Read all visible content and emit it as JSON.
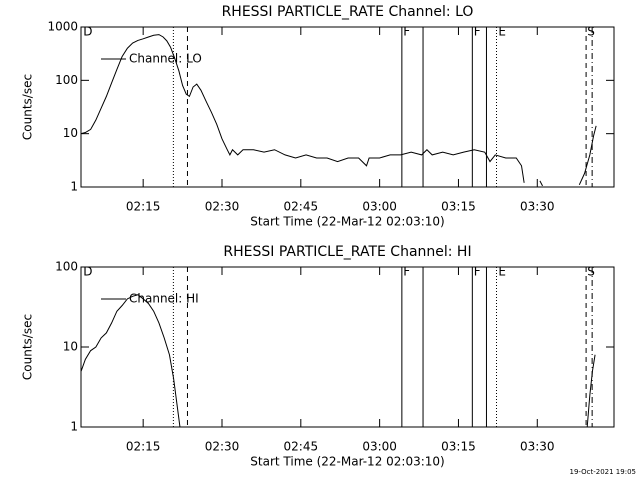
{
  "charts": [
    {
      "type": "line",
      "title": "RHESSI PARTICLE_RATE Channel: LO",
      "xlabel": "Start Time (22-Mar-12 02:03:10)",
      "ylabel": "Counts/sec",
      "x": [
        123.2,
        124,
        125,
        126,
        127,
        128,
        129,
        130,
        131,
        132,
        133,
        134,
        135,
        136,
        137,
        138,
        138.8,
        139.5,
        140.2,
        141,
        141.8,
        142.5,
        143.2,
        143.8,
        144.5,
        145.2,
        146,
        147,
        148,
        149,
        150,
        151,
        151.5,
        152,
        153,
        154,
        156,
        158,
        160,
        162,
        164,
        166,
        168,
        170,
        172,
        174,
        176,
        177.5,
        178,
        180,
        182,
        184,
        186,
        188,
        189,
        190,
        192,
        194,
        196,
        198,
        200,
        201,
        202,
        204,
        206,
        207,
        207.5,
        208,
        210.5,
        211,
        211.5,
        218,
        219,
        220,
        220.7,
        221.2
      ],
      "series": [
        {
          "name": "Channel: LO",
          "color": "#000000",
          "values": [
            10,
            10.5,
            12,
            18,
            30,
            50,
            90,
            160,
            280,
            400,
            500,
            560,
            600,
            650,
            700,
            720,
            650,
            550,
            420,
            260,
            150,
            80,
            55,
            50,
            75,
            85,
            65,
            40,
            25,
            15,
            8,
            5,
            4,
            5,
            4,
            5,
            5,
            4.5,
            5,
            4,
            3.5,
            4,
            3.5,
            3.5,
            3,
            3.5,
            3.5,
            2.5,
            3.5,
            3.5,
            4,
            4,
            4.5,
            4,
            5,
            4,
            4.5,
            4,
            4.5,
            5,
            4.5,
            3,
            4,
            3.5,
            3.5,
            2.5,
            1.2,
            null,
            1.3,
            1.05,
            null,
            1.1,
            1.8,
            4,
            9,
            14
          ]
        }
      ],
      "xlim": [
        123.17,
        224.6
      ],
      "ylim": [
        1,
        1000
      ],
      "log_y": true,
      "legend": "upper left",
      "xticks": [
        {
          "value": 135,
          "label": "02:15"
        },
        {
          "value": 150,
          "label": "02:30"
        },
        {
          "value": 165,
          "label": "02:45"
        },
        {
          "value": 180,
          "label": "03:00"
        },
        {
          "value": 195,
          "label": "03:15"
        },
        {
          "value": 210,
          "label": "03:30"
        }
      ],
      "yticks": [
        1,
        10,
        100,
        1000
      ],
      "markers": [
        {
          "x": 140.75,
          "style": "dotted"
        },
        {
          "x": 143.43,
          "style": "dashed"
        },
        {
          "x": 184.23,
          "style": "solid"
        },
        {
          "x": 188.26,
          "style": "solid"
        },
        {
          "x": 197.64,
          "style": "solid"
        },
        {
          "x": 200.33,
          "style": "solid"
        },
        {
          "x": 202.24,
          "style": "dotted"
        },
        {
          "x": 219.29,
          "style": "dashed"
        },
        {
          "x": 220.44,
          "style": "dashdot"
        }
      ],
      "marker_labels": [
        {
          "x": 123.6,
          "text": "D"
        },
        {
          "x": 184.5,
          "text": "F"
        },
        {
          "x": 197.9,
          "text": "F"
        },
        {
          "x": 202.6,
          "text": "E"
        },
        {
          "x": 219.5,
          "text": "S"
        }
      ]
    },
    {
      "type": "line",
      "title": "RHESSI PARTICLE_RATE Channel: HI",
      "xlabel": "Start Time (22-Mar-12 02:03:10)",
      "ylabel": "Counts/sec",
      "x": [
        123.2,
        124,
        125,
        126,
        127,
        128,
        129,
        130,
        131,
        132,
        133,
        134,
        135,
        136,
        137,
        138,
        139,
        140,
        140.8,
        141.4,
        142,
        142.3,
        219.5,
        220,
        220.5,
        221
      ],
      "series": [
        {
          "name": "Channel: HI",
          "color": "#000000",
          "values": [
            5,
            7,
            9,
            10,
            13,
            15,
            20,
            28,
            33,
            40,
            43,
            45,
            40,
            35,
            28,
            20,
            13,
            8,
            4,
            2,
            1,
            null,
            1,
            2.5,
            5,
            8
          ]
        }
      ],
      "xlim": [
        123.17,
        224.6
      ],
      "ylim": [
        1,
        100
      ],
      "log_y": true,
      "legend": "upper left",
      "xticks": [
        {
          "value": 135,
          "label": "02:15"
        },
        {
          "value": 150,
          "label": "02:30"
        },
        {
          "value": 165,
          "label": "02:45"
        },
        {
          "value": 180,
          "label": "03:00"
        },
        {
          "value": 195,
          "label": "03:15"
        },
        {
          "value": 210,
          "label": "03:30"
        }
      ],
      "yticks": [
        1,
        10,
        100
      ],
      "markers": [
        {
          "x": 140.75,
          "style": "dotted"
        },
        {
          "x": 143.43,
          "style": "dashed"
        },
        {
          "x": 184.23,
          "style": "solid"
        },
        {
          "x": 188.26,
          "style": "solid"
        },
        {
          "x": 197.64,
          "style": "solid"
        },
        {
          "x": 200.33,
          "style": "solid"
        },
        {
          "x": 202.24,
          "style": "dotted"
        },
        {
          "x": 219.29,
          "style": "dashed"
        },
        {
          "x": 220.44,
          "style": "dashdot"
        }
      ],
      "marker_labels": [
        {
          "x": 123.6,
          "text": "D"
        },
        {
          "x": 184.5,
          "text": "F"
        },
        {
          "x": 197.9,
          "text": "F"
        },
        {
          "x": 202.6,
          "text": "E"
        },
        {
          "x": 219.5,
          "text": "S"
        }
      ]
    }
  ],
  "footer": "19-Oct-2021 19:05"
}
